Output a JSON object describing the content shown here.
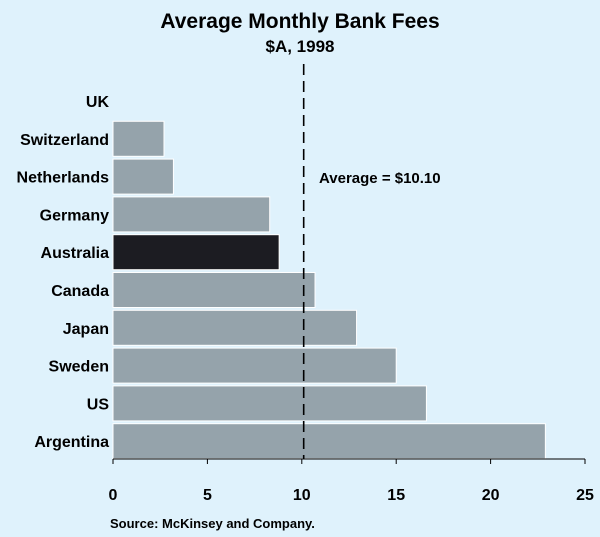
{
  "chart_data": {
    "type": "bar",
    "orientation": "horizontal",
    "title": "Average Monthly Bank Fees",
    "subtitle": "$A, 1998",
    "categories": [
      "UK",
      "Switzerland",
      "Netherlands",
      "Germany",
      "Australia",
      "Canada",
      "Japan",
      "Sweden",
      "US",
      "Argentina"
    ],
    "values": [
      0,
      2.7,
      3.2,
      8.3,
      8.8,
      10.7,
      12.9,
      15.0,
      16.6,
      22.9
    ],
    "highlight": "Australia",
    "xlim": [
      0,
      25
    ],
    "xticks": [
      0,
      5,
      10,
      15,
      20,
      25
    ],
    "xlabel": "",
    "reference_line": {
      "value": 10.1,
      "label": "Average = $10.10",
      "style": "dashed"
    },
    "source": "Source: McKinsey and Company.",
    "grid": false,
    "colors": {
      "bar": "#95a3ab",
      "highlight": "#1c1c22",
      "background": "#dff2fc",
      "bar_edge": "#ffffff"
    }
  }
}
